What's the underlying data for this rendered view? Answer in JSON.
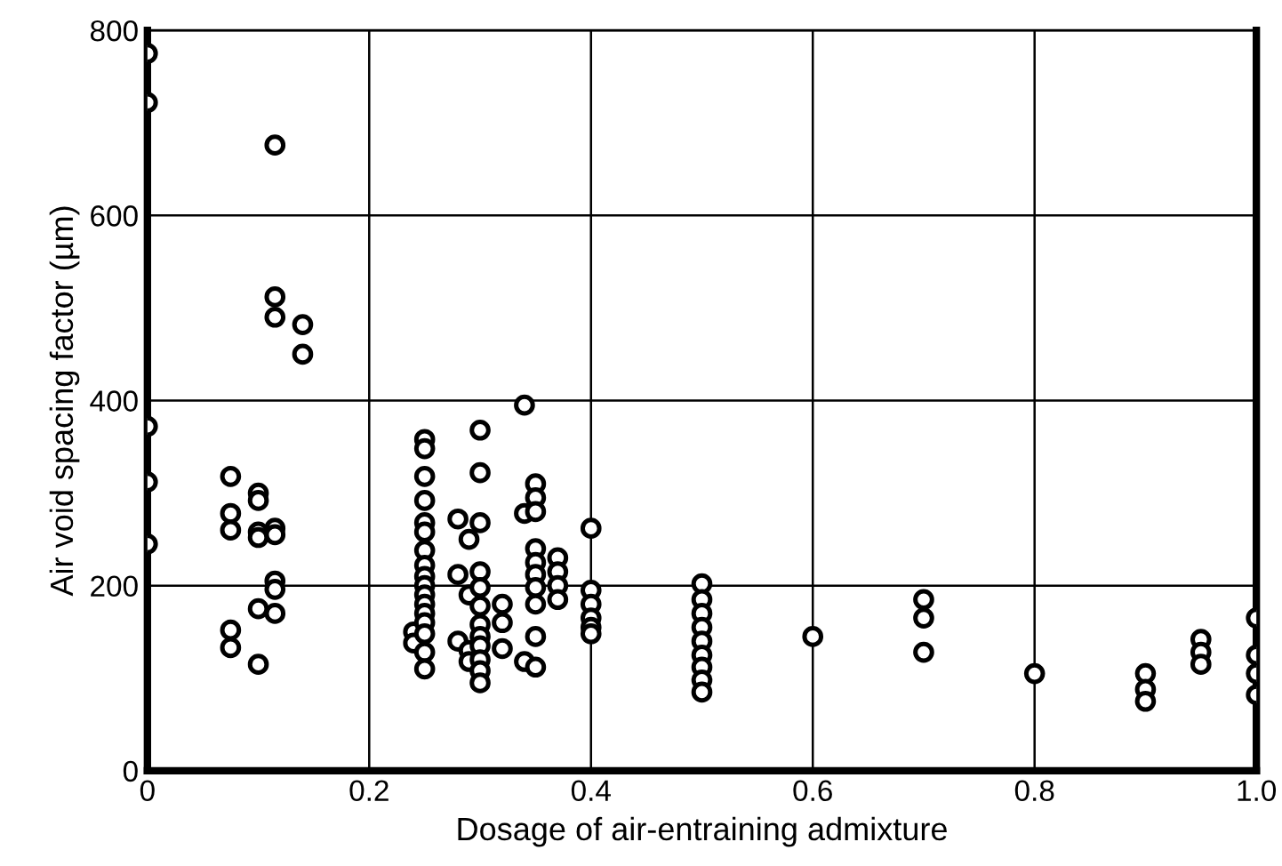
{
  "chart_data": {
    "type": "scatter",
    "xlabel": "Dosage of air-entraining admixture",
    "ylabel": "Air void spacing factor (µm)",
    "xlim": [
      0,
      1.0
    ],
    "xticks": [
      {
        "value": 0,
        "label": "0"
      },
      0.2,
      0.4,
      0.6,
      0.8,
      {
        "value": 1,
        "label": "1.0"
      }
    ],
    "ylim": [
      0,
      800
    ],
    "yticks": [
      0,
      200,
      400,
      600,
      800
    ],
    "grid": true,
    "marker": "circle",
    "series": [
      {
        "color": "#000000",
        "x": [
          0,
          0,
          0,
          0,
          0,
          0.075,
          0.075,
          0.075,
          0.075,
          0.075,
          0.1,
          0.1,
          0.1,
          0.1,
          0.1,
          0.1,
          0.115,
          0.115,
          0.115,
          0.115,
          0.115,
          0.115,
          0.115,
          0.115,
          0.14,
          0.14,
          0.24,
          0.24,
          0.25,
          0.25,
          0.25,
          0.25,
          0.25,
          0.25,
          0.25,
          0.25,
          0.25,
          0.25,
          0.25,
          0.25,
          0.25,
          0.25,
          0.25,
          0.25,
          0.25,
          0.28,
          0.28,
          0.28,
          0.29,
          0.29,
          0.29,
          0.29,
          0.3,
          0.3,
          0.3,
          0.3,
          0.3,
          0.3,
          0.3,
          0.3,
          0.3,
          0.3,
          0.3,
          0.3,
          0.32,
          0.32,
          0.32,
          0.34,
          0.34,
          0.34,
          0.35,
          0.35,
          0.35,
          0.35,
          0.35,
          0.35,
          0.35,
          0.35,
          0.35,
          0.35,
          0.37,
          0.37,
          0.37,
          0.37,
          0.4,
          0.4,
          0.4,
          0.4,
          0.4,
          0.4,
          0.5,
          0.5,
          0.5,
          0.5,
          0.5,
          0.5,
          0.5,
          0.5,
          0.5,
          0.6,
          0.7,
          0.7,
          0.7,
          0.8,
          0.9,
          0.9,
          0.9,
          0.95,
          0.95,
          0.95,
          1.0,
          1.0,
          1.0,
          1.0
        ],
        "values": [
          775,
          722,
          372,
          312,
          245,
          318,
          278,
          260,
          152,
          133,
          300,
          292,
          258,
          252,
          175,
          115,
          676,
          512,
          490,
          262,
          255,
          205,
          196,
          170,
          482,
          450,
          150,
          138,
          358,
          348,
          318,
          292,
          268,
          258,
          238,
          222,
          210,
          200,
          190,
          180,
          170,
          160,
          148,
          128,
          110,
          272,
          212,
          140,
          250,
          190,
          130,
          118,
          368,
          322,
          268,
          215,
          198,
          178,
          158,
          145,
          135,
          120,
          108,
          95,
          180,
          160,
          132,
          395,
          278,
          118,
          310,
          295,
          280,
          240,
          225,
          212,
          198,
          180,
          145,
          112,
          230,
          215,
          200,
          185,
          262,
          195,
          180,
          165,
          155,
          148,
          202,
          185,
          170,
          155,
          140,
          125,
          112,
          98,
          85,
          145,
          185,
          165,
          128,
          105,
          105,
          88,
          75,
          142,
          128,
          115,
          165,
          125,
          105,
          82
        ]
      }
    ]
  }
}
